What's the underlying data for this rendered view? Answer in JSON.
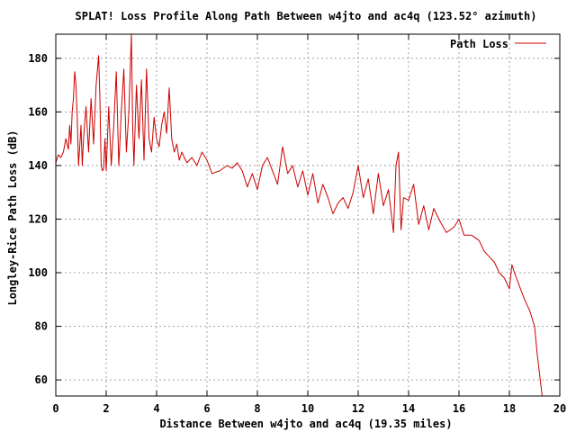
{
  "chart_data": {
    "type": "line",
    "title": "SPLAT! Loss Profile Along Path Between w4jto and ac4q (123.52° azimuth)",
    "xlabel": "Distance Between w4jto and ac4q (19.35 miles)",
    "ylabel": "Longley-Rice Path Loss (dB)",
    "xlim": [
      0,
      20
    ],
    "ylim": [
      54,
      189
    ],
    "xticks": [
      0,
      2,
      4,
      6,
      8,
      10,
      12,
      14,
      16,
      18,
      20
    ],
    "yticks": [
      60,
      80,
      100,
      120,
      140,
      160,
      180
    ],
    "grid": true,
    "legend_position": "top-right",
    "series_color": "#cc0000",
    "series": [
      {
        "name": "Path Loss",
        "x": [
          0.0,
          0.1,
          0.2,
          0.3,
          0.4,
          0.5,
          0.55,
          0.6,
          0.65,
          0.7,
          0.75,
          0.8,
          0.85,
          0.9,
          0.95,
          1.0,
          1.05,
          1.1,
          1.2,
          1.3,
          1.4,
          1.5,
          1.6,
          1.7,
          1.75,
          1.8,
          1.85,
          1.9,
          1.95,
          2.0,
          2.1,
          2.2,
          2.3,
          2.4,
          2.5,
          2.6,
          2.7,
          2.8,
          2.9,
          3.0,
          3.05,
          3.1,
          3.2,
          3.3,
          3.4,
          3.5,
          3.6,
          3.7,
          3.8,
          3.9,
          4.0,
          4.1,
          4.2,
          4.3,
          4.4,
          4.5,
          4.6,
          4.7,
          4.8,
          4.9,
          5.0,
          5.2,
          5.4,
          5.6,
          5.8,
          6.0,
          6.2,
          6.5,
          6.8,
          7.0,
          7.2,
          7.4,
          7.6,
          7.8,
          8.0,
          8.2,
          8.4,
          8.6,
          8.8,
          9.0,
          9.2,
          9.4,
          9.6,
          9.8,
          10.0,
          10.2,
          10.4,
          10.6,
          10.8,
          11.0,
          11.2,
          11.4,
          11.6,
          11.8,
          12.0,
          12.2,
          12.4,
          12.6,
          12.8,
          13.0,
          13.2,
          13.4,
          13.5,
          13.6,
          13.7,
          13.8,
          14.0,
          14.2,
          14.4,
          14.6,
          14.8,
          15.0,
          15.2,
          15.5,
          15.8,
          16.0,
          16.2,
          16.5,
          16.8,
          17.0,
          17.2,
          17.4,
          17.6,
          17.8,
          17.9,
          18.0,
          18.1,
          18.2,
          18.4,
          18.6,
          18.8,
          19.0,
          19.1,
          19.2,
          19.3,
          19.35
        ],
        "values": [
          141,
          144,
          143,
          145,
          150,
          146,
          155,
          148,
          160,
          165,
          175,
          170,
          158,
          140,
          147,
          155,
          140,
          150,
          162,
          145,
          165,
          148,
          170,
          181,
          165,
          140,
          138,
          139,
          150,
          138,
          162,
          140,
          155,
          175,
          140,
          160,
          176,
          145,
          160,
          189,
          155,
          140,
          170,
          150,
          172,
          142,
          176,
          150,
          145,
          158,
          150,
          147,
          155,
          160,
          152,
          169,
          150,
          145,
          148,
          142,
          145,
          141,
          143,
          140,
          145,
          142,
          137,
          138,
          140,
          139,
          141,
          138,
          132,
          137,
          131,
          140,
          143,
          138,
          133,
          147,
          137,
          140,
          132,
          138,
          129,
          137,
          126,
          133,
          128,
          122,
          126,
          128,
          124,
          130,
          140,
          128,
          135,
          122,
          137,
          125,
          131,
          115,
          140,
          145,
          116,
          128,
          127,
          133,
          118,
          125,
          116,
          124,
          120,
          115,
          117,
          120,
          114,
          114,
          112,
          108,
          106,
          104,
          100,
          98,
          96,
          94,
          103,
          100,
          95,
          90,
          86,
          80,
          70,
          62,
          54,
          54
        ]
      }
    ]
  }
}
